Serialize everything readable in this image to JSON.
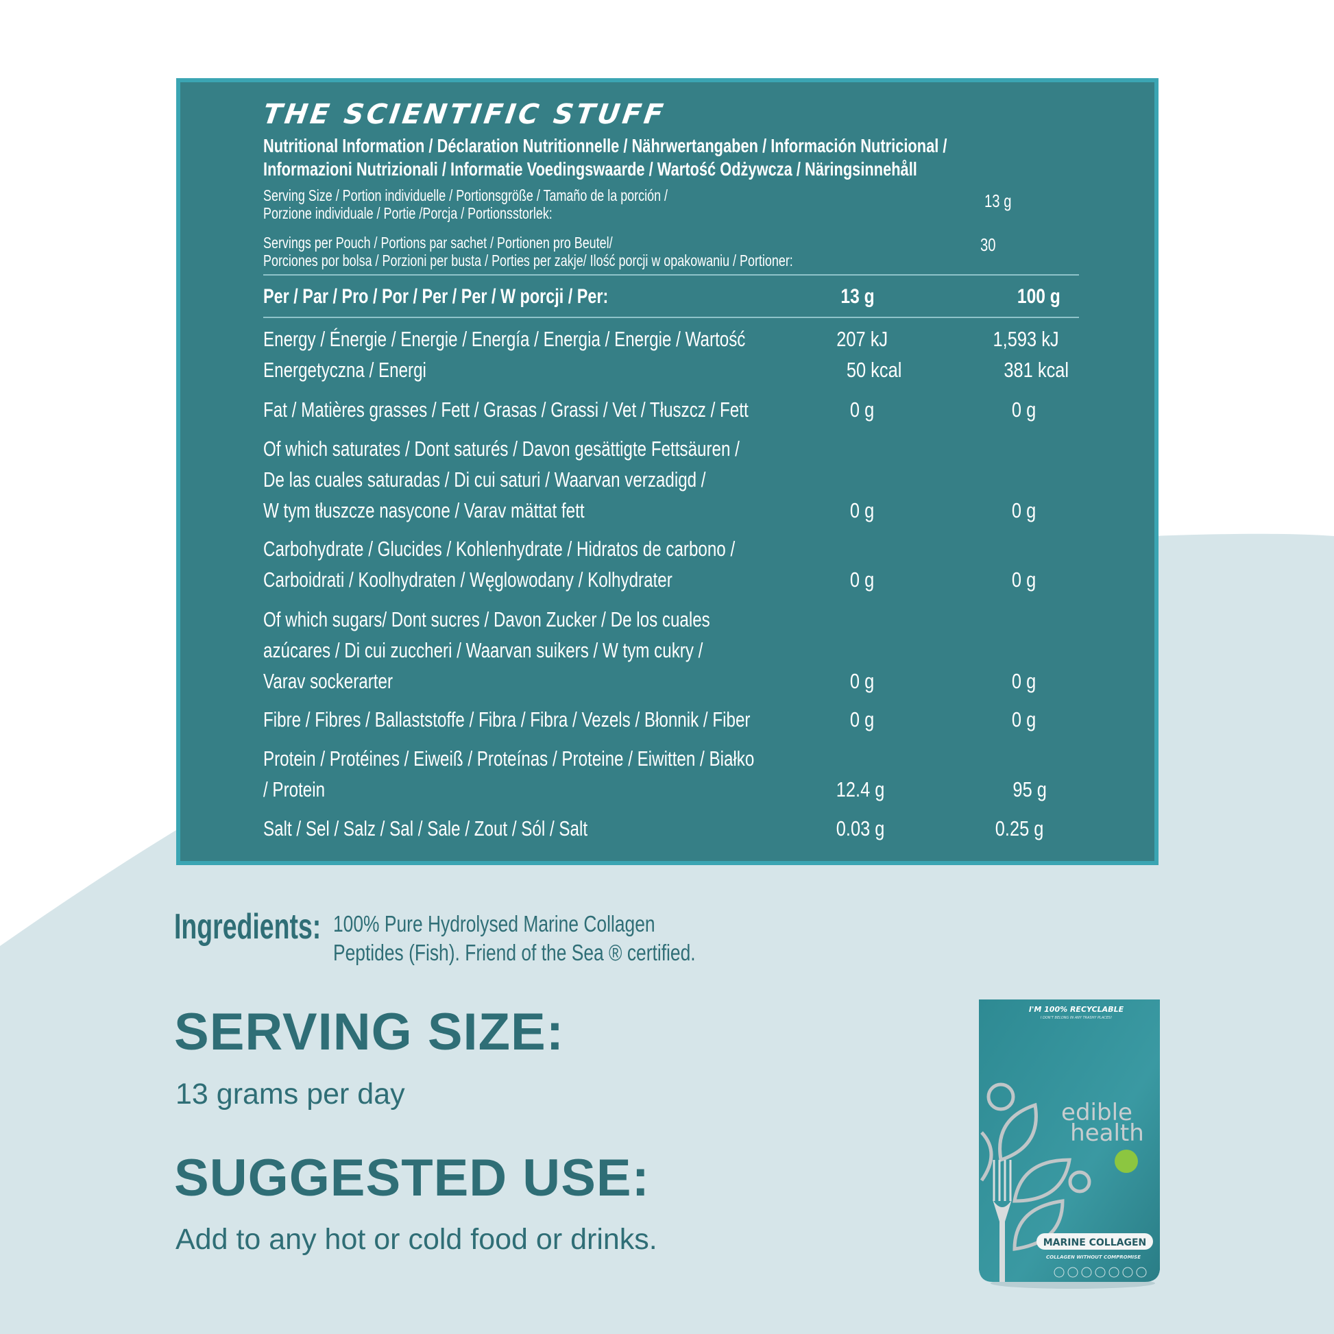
{
  "title": "THE SCIENTIFIC STUFF",
  "subheading": [
    "Nutritional Information / Déclaration Nutritionnelle / Nährwertangaben / Información Nutricional /",
    "Informazioni Nutrizionali / Informatie Voedingswaarde / Wartość Odżywcza / Näringsinnehåll"
  ],
  "serving_size": {
    "lines": [
      "Serving Size / Portion individuelle / Portionsgröße / Tamaño de la porción /",
      "Porzione individuale / Portie /Porcja / Portionsstorlek:"
    ],
    "value": "13 g"
  },
  "servings_per_pouch": {
    "lines": [
      "Servings per Pouch / Portions par sachet / Portionen pro Beutel/",
      "Porciones por bolsa / Porzioni per busta / Porties per zakje/ Ilość porcji w opakowaniu / Portioner:"
    ],
    "value": "30"
  },
  "table_header": {
    "label": "Per / Par / Pro / Por / Per / Per / W porcji / Per:",
    "col1": "13 g",
    "col2": "100 g"
  },
  "rows": [
    {
      "lines": [
        "Energy / Énergie / Energie / Energía / Energia / Energie / Wartość",
        "Energetyczna / Energi"
      ],
      "v1": [
        "207 kJ",
        "50 kcal"
      ],
      "v2": [
        "1,593 kJ",
        "381 kcal"
      ]
    },
    {
      "lines": [
        "Fat / Matières grasses / Fett / Grasas / Grassi / Vet / Tłuszcz / Fett"
      ],
      "v1": [
        "0 g"
      ],
      "v2": [
        "0 g"
      ]
    },
    {
      "lines": [
        "Of which saturates / Dont saturés / Davon gesättigte Fettsäuren /",
        "De las cuales saturadas / Di cui saturi / Waarvan verzadigd /",
        "W tym tłuszcze nasycone / Varav mättat fett"
      ],
      "v1": [
        "0 g"
      ],
      "v2": [
        "0 g"
      ]
    },
    {
      "lines": [
        "Carbohydrate / Glucides / Kohlenhydrate / Hidratos de carbono /",
        "Carboidrati / Koolhydraten / Węglowodany / Kolhydrater"
      ],
      "v1": [
        "0 g"
      ],
      "v2": [
        "0 g"
      ]
    },
    {
      "lines": [
        "Of which sugars/ Dont sucres / Davon Zucker / De los cuales",
        "azúcares / Di cui zuccheri / Waarvan suikers / W tym cukry /",
        "Varav sockerarter"
      ],
      "v1": [
        "0 g"
      ],
      "v2": [
        "0 g"
      ]
    },
    {
      "lines": [
        "Fibre / Fibres / Ballaststoffe / Fibra / Fibra / Vezels / Błonnik / Fiber"
      ],
      "v1": [
        "0 g"
      ],
      "v2": [
        "0 g"
      ]
    },
    {
      "lines": [
        "Protein / Protéines / Eiweiß / Proteínas / Proteine / Eiwitten / Białko",
        "/ Protein"
      ],
      "v1": [
        "12.4 g"
      ],
      "v2": [
        "95  g"
      ]
    },
    {
      "lines": [
        "Salt / Sel / Salz / Sal / Sale / Zout / Sól / Salt"
      ],
      "v1": [
        "0.03 g"
      ],
      "v2": [
        "0.25  g"
      ]
    }
  ],
  "ingredients": {
    "heading": "Ingredients:",
    "lines": [
      "100% Pure Hydrolysed Marine Collagen",
      "Peptides (Fish). Friend of the Sea ® certified."
    ]
  },
  "serving": {
    "heading": "SERVING SIZE:",
    "text": "13 grams per day"
  },
  "suggested": {
    "heading": "SUGGESTED USE:",
    "text": "Add to any hot or cold food or drinks."
  },
  "pouch": {
    "top1": "I'M 100% RECYCLABLE",
    "top2": "I DON'T BELONG IN ANY TRASHY PLACES!",
    "brand1": "edible",
    "brand2": "health",
    "product": "MARINE COLLAGEN",
    "tagline": "COLLAGEN WITHOUT COMPROMISE"
  },
  "colors": {
    "panel": "#367f86",
    "panel_border": "#3ba5b3",
    "text_dark": "#2f6e76",
    "bg_light": "#d6e5e9"
  }
}
